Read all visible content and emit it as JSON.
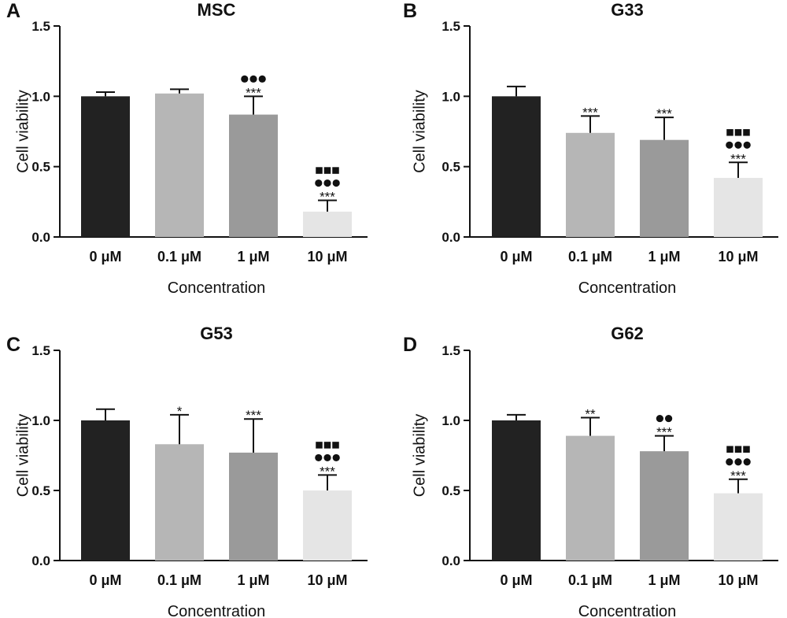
{
  "chart_data": [
    {
      "type": "bar",
      "panel": "A",
      "title": "MSC",
      "xlabel": "Concentration",
      "ylabel": "Cell viability",
      "ylim": [
        0,
        1.5
      ],
      "yticks": [
        "0.0",
        "0.5",
        "1.0",
        "1.5"
      ],
      "categories": [
        "0 μM",
        "0.1 μM",
        "1 μM",
        "10 μM"
      ],
      "values": [
        1.0,
        1.02,
        0.87,
        0.18
      ],
      "errors": [
        0.03,
        0.03,
        0.13,
        0.08
      ],
      "significance": [
        {
          "stars": "",
          "circles": 0,
          "squares": 0
        },
        {
          "stars": "",
          "circles": 0,
          "squares": 0
        },
        {
          "stars": "***",
          "circles": 3,
          "squares": 0
        },
        {
          "stars": "***",
          "circles": 3,
          "squares": 3
        }
      ],
      "grid": false,
      "legend": "none"
    },
    {
      "type": "bar",
      "panel": "B",
      "title": "G33",
      "xlabel": "Concentration",
      "ylabel": "Cell viability",
      "ylim": [
        0,
        1.5
      ],
      "yticks": [
        "0.0",
        "0.5",
        "1.0",
        "1.5"
      ],
      "categories": [
        "0 μM",
        "0.1 μM",
        "1 μM",
        "10 μM"
      ],
      "values": [
        1.0,
        0.74,
        0.69,
        0.42
      ],
      "errors": [
        0.07,
        0.12,
        0.16,
        0.11
      ],
      "significance": [
        {
          "stars": "",
          "circles": 0,
          "squares": 0
        },
        {
          "stars": "***",
          "circles": 0,
          "squares": 0
        },
        {
          "stars": "***",
          "circles": 0,
          "squares": 0
        },
        {
          "stars": "***",
          "circles": 3,
          "squares": 3
        }
      ],
      "grid": false,
      "legend": "none"
    },
    {
      "type": "bar",
      "panel": "C",
      "title": "G53",
      "xlabel": "Concentration",
      "ylabel": "Cell viability",
      "ylim": [
        0,
        1.5
      ],
      "yticks": [
        "0.0",
        "0.5",
        "1.0",
        "1.5"
      ],
      "categories": [
        "0 μM",
        "0.1 μM",
        "1 μM",
        "10 μM"
      ],
      "values": [
        1.0,
        0.83,
        0.77,
        0.5
      ],
      "errors": [
        0.08,
        0.21,
        0.24,
        0.11
      ],
      "significance": [
        {
          "stars": "",
          "circles": 0,
          "squares": 0
        },
        {
          "stars": "*",
          "circles": 0,
          "squares": 0
        },
        {
          "stars": "***",
          "circles": 0,
          "squares": 0
        },
        {
          "stars": "***",
          "circles": 3,
          "squares": 3
        }
      ],
      "grid": false,
      "legend": "none"
    },
    {
      "type": "bar",
      "panel": "D",
      "title": "G62",
      "xlabel": "Concentration",
      "ylabel": "Cell viability",
      "ylim": [
        0,
        1.5
      ],
      "yticks": [
        "0.0",
        "0.5",
        "1.0",
        "1.5"
      ],
      "categories": [
        "0 μM",
        "0.1 μM",
        "1 μM",
        "10 μM"
      ],
      "values": [
        1.0,
        0.89,
        0.78,
        0.48
      ],
      "errors": [
        0.04,
        0.13,
        0.11,
        0.1
      ],
      "significance": [
        {
          "stars": "",
          "circles": 0,
          "squares": 0
        },
        {
          "stars": "**",
          "circles": 0,
          "squares": 0
        },
        {
          "stars": "***",
          "circles": 2,
          "squares": 0
        },
        {
          "stars": "***",
          "circles": 3,
          "squares": 3
        }
      ],
      "grid": false,
      "legend": "none"
    }
  ],
  "colors": {
    "bar_fills": [
      "#222222",
      "#b6b6b6",
      "#9a9a9a",
      "#e5e5e5"
    ],
    "ink": "#111111"
  }
}
